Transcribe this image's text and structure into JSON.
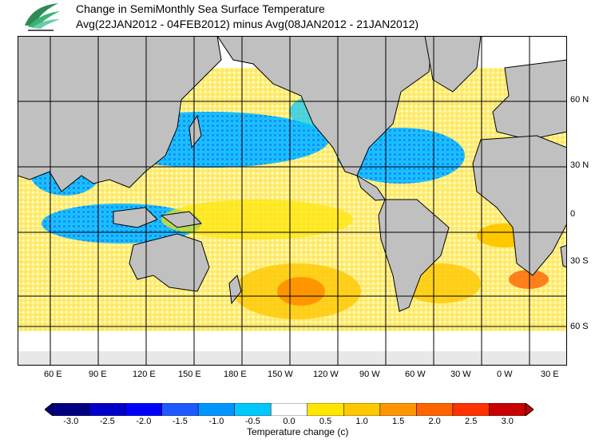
{
  "header": {
    "title": "Change in SemiMonthly Sea Surface Temperature",
    "subtitle": "Avg(22JAN2012 - 04FEB2012) minus Avg(08JAN2012 - 21JAN2012)"
  },
  "map": {
    "lon_ticks": [
      "60 E",
      "90 E",
      "120 E",
      "150 E",
      "180 E",
      "150 W",
      "120 W",
      "90 W",
      "60 W",
      "30 W",
      "0 W",
      "30 E"
    ],
    "lat_ticks": [
      "60 N",
      "30 N",
      "0",
      "30 S",
      "60 S"
    ],
    "colors": {
      "land": "#c0c0c0",
      "ocean_cool": "#00bfff",
      "ocean_warm": "#ffd700",
      "grid": "#000000"
    }
  },
  "colorbar": {
    "labels": [
      "-3.0",
      "-2.5",
      "-2.0",
      "-1.5",
      "-1.0",
      "-0.5",
      "0.0",
      "0.5",
      "1.0",
      "1.5",
      "2.0",
      "2.5",
      "3.0"
    ],
    "colors": [
      "#000080",
      "#0000c8",
      "#0000ff",
      "#1e5aff",
      "#0096ff",
      "#00c8ff",
      "#ffffff",
      "#ffe600",
      "#ffc800",
      "#ff9600",
      "#ff6400",
      "#ff3200",
      "#c80000"
    ],
    "title": "Temperature change (c)"
  }
}
